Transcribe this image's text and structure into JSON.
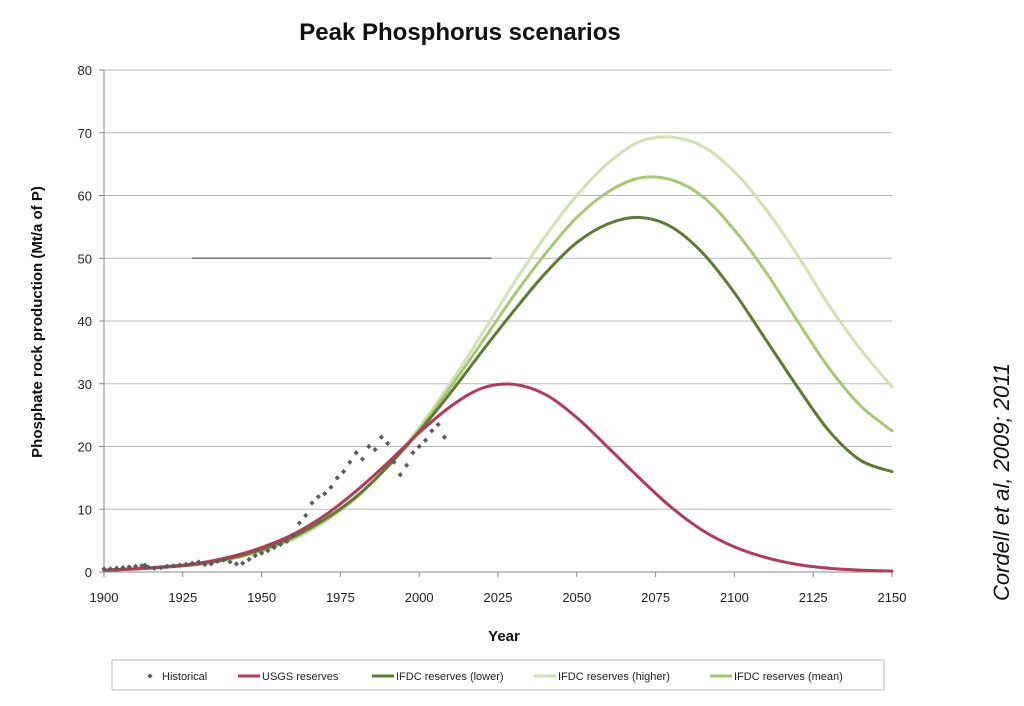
{
  "chart_data": {
    "type": "line",
    "title": "Peak Phosphorus scenarios",
    "xlabel": "Year",
    "ylabel": "Phosphate rock production (Mt/a of P)",
    "xlim": [
      1900,
      2150
    ],
    "ylim": [
      0,
      80
    ],
    "x_ticks": [
      1900,
      1925,
      1950,
      1975,
      2000,
      2025,
      2050,
      2075,
      2100,
      2125,
      2150
    ],
    "y_ticks": [
      0,
      10,
      20,
      30,
      40,
      50,
      60,
      70,
      80
    ],
    "x_tick_labels": [
      "1900",
      "1925",
      "1950",
      "1975",
      "2000",
      "2025",
      "2050",
      "2075",
      "2100",
      "2125",
      "2150"
    ],
    "y_tick_labels": [
      "0",
      "10",
      "20",
      "30",
      "40",
      "50",
      "60",
      "70",
      "80"
    ],
    "grid": true,
    "legend_position": "bottom",
    "series": [
      {
        "name": "Historical",
        "type": "scatter",
        "color": "#5a5a5a",
        "x": [
          1900,
          1902,
          1904,
          1906,
          1908,
          1910,
          1912,
          1913,
          1914,
          1916,
          1918,
          1920,
          1922,
          1924,
          1926,
          1928,
          1930,
          1932,
          1934,
          1936,
          1938,
          1940,
          1942,
          1944,
          1946,
          1948,
          1950,
          1952,
          1954,
          1956,
          1958,
          1960,
          1962,
          1964,
          1966,
          1968,
          1970,
          1972,
          1974,
          1976,
          1978,
          1980,
          1982,
          1984,
          1986,
          1988,
          1990,
          1992,
          1994,
          1996,
          1998,
          2000,
          2002,
          2004,
          2006,
          2008
        ],
        "y": [
          0.5,
          0.5,
          0.6,
          0.7,
          0.8,
          0.9,
          1.0,
          1.1,
          0.8,
          0.6,
          0.7,
          0.9,
          1.0,
          1.1,
          1.2,
          1.4,
          1.6,
          1.2,
          1.3,
          1.7,
          1.9,
          1.6,
          1.3,
          1.4,
          2.0,
          2.6,
          3.0,
          3.4,
          3.9,
          4.4,
          4.9,
          5.8,
          7.8,
          9.0,
          11.0,
          12.0,
          12.5,
          13.5,
          15.0,
          16.0,
          17.5,
          19.0,
          18.0,
          20.0,
          19.5,
          21.5,
          20.5,
          17.5,
          15.5,
          17.0,
          19.0,
          20.0,
          21.0,
          22.5,
          23.5,
          21.5
        ]
      },
      {
        "name": "USGS reserves",
        "type": "line",
        "color": "#b23a5a",
        "x": [
          1900,
          1910,
          1920,
          1930,
          1940,
          1950,
          1960,
          1970,
          1980,
          1990,
          2000,
          2010,
          2020,
          2030,
          2040,
          2050,
          2060,
          2070,
          2080,
          2090,
          2100,
          2110,
          2120,
          2130,
          2140,
          2150
        ],
        "y": [
          0.3,
          0.5,
          0.9,
          1.4,
          2.4,
          3.9,
          6.0,
          9.0,
          12.9,
          17.4,
          22.2,
          26.4,
          29.3,
          29.9,
          28.3,
          24.6,
          19.8,
          14.9,
          10.3,
          6.6,
          4.0,
          2.3,
          1.2,
          0.6,
          0.3,
          0.15
        ]
      },
      {
        "name": "IFDC reserves (lower)",
        "type": "line",
        "color": "#5f7a36",
        "x": [
          1900,
          1910,
          1920,
          1930,
          1940,
          1950,
          1960,
          1970,
          1980,
          1990,
          2000,
          2010,
          2020,
          2030,
          2040,
          2050,
          2060,
          2070,
          2080,
          2090,
          2100,
          2110,
          2120,
          2130,
          2140,
          2150
        ],
        "y": [
          0.3,
          0.5,
          0.8,
          1.3,
          2.2,
          3.6,
          5.6,
          8.4,
          12.0,
          16.8,
          22.4,
          28.6,
          35.2,
          41.6,
          47.6,
          52.5,
          55.5,
          56.5,
          55.0,
          50.8,
          44.5,
          37.0,
          29.5,
          22.5,
          17.8,
          16.0
        ]
      },
      {
        "name": "IFDC reserves (higher)",
        "type": "line",
        "color": "#d2e2b4",
        "x": [
          1900,
          1910,
          1920,
          1930,
          1940,
          1950,
          1960,
          1970,
          1980,
          1990,
          2000,
          2010,
          2020,
          2030,
          2040,
          2050,
          2060,
          2070,
          2080,
          2090,
          2100,
          2110,
          2120,
          2130,
          2140,
          2150
        ],
        "y": [
          0.3,
          0.5,
          0.8,
          1.2,
          2.0,
          3.3,
          5.2,
          8.0,
          11.8,
          16.8,
          23.0,
          30.2,
          38.0,
          46.0,
          53.5,
          60.0,
          65.2,
          68.6,
          69.3,
          67.8,
          63.8,
          57.8,
          50.5,
          42.5,
          35.5,
          29.5
        ]
      },
      {
        "name": "IFDC reserves (mean)",
        "type": "line",
        "color": "#a9c873",
        "x": [
          1900,
          1910,
          1920,
          1930,
          1940,
          1950,
          1960,
          1970,
          1980,
          1990,
          2000,
          2010,
          2020,
          2030,
          2040,
          2050,
          2060,
          2070,
          2080,
          2090,
          2100,
          2110,
          2120,
          2130,
          2140,
          2150
        ],
        "y": [
          0.3,
          0.5,
          0.8,
          1.2,
          2.1,
          3.4,
          5.4,
          8.2,
          11.9,
          16.8,
          22.7,
          29.5,
          36.7,
          44.0,
          50.7,
          56.5,
          60.6,
          62.8,
          62.5,
          59.8,
          54.5,
          47.8,
          40.0,
          32.5,
          26.5,
          22.5
        ]
      }
    ],
    "reference_line": {
      "y": 50,
      "x_start": 1928,
      "x_end": 2023,
      "color": "#777777"
    }
  },
  "legend": {
    "items": [
      {
        "label": "Historical",
        "color": "#5a5a5a",
        "marker": "diamond"
      },
      {
        "label": "USGS reserves",
        "color": "#b23a5a",
        "marker": "line"
      },
      {
        "label": "IFDC reserves (lower)",
        "color": "#5f7a36",
        "marker": "line"
      },
      {
        "label": "IFDC reserves (higher)",
        "color": "#d2e2b4",
        "marker": "line"
      },
      {
        "label": "IFDC reserves (mean)",
        "color": "#a9c873",
        "marker": "line"
      }
    ]
  },
  "citation": "Cordell et al, 2009; 2011"
}
